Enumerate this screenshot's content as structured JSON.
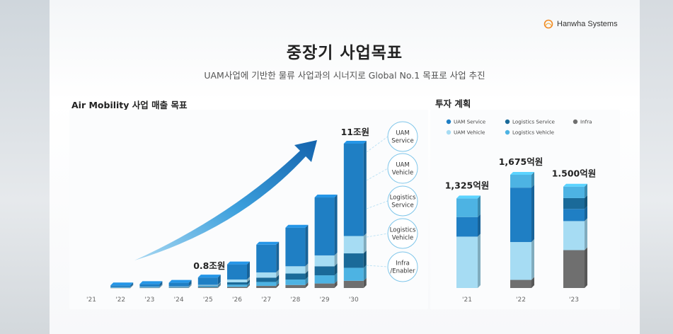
{
  "brand": {
    "logo_text": "Hanwha Systems"
  },
  "header": {
    "title": "중장기 사업목표",
    "subtitle": "UAM사업에 기반한 물류 사업과의 시너지로 Global No.1 목표로 사업 추진"
  },
  "left_section": {
    "title": "Air Mobility 사업 매출 목표"
  },
  "right_section": {
    "title": "투자 계획"
  },
  "colors": {
    "uam_service": "#1f7fc4",
    "uam_vehicle": "#a6dcf3",
    "logistics_service": "#1a6a99",
    "logistics_vehicle": "#4db3e3",
    "infra": "#6f6f6f",
    "arrow": "#1e88d0"
  },
  "chart_data": [
    {
      "type": "bar",
      "stacked": true,
      "categories": [
        "'21",
        "'22",
        "'23",
        "'24",
        "'25",
        "'26",
        "'27",
        "'28",
        "'29",
        "'30"
      ],
      "data_labels": {
        "'25": "0.8조원",
        "'30": "11조원"
      },
      "segment_labels": [
        {
          "key": "uam_service",
          "label": "UAM\nService"
        },
        {
          "key": "uam_vehicle",
          "label": "UAM\nVehicle"
        },
        {
          "key": "logistics_service",
          "label": "Logistics\nService"
        },
        {
          "key": "logistics_vehicle",
          "label": "Logistics\nVehicle"
        },
        {
          "key": "infra",
          "label": "Infra\n/Enabler"
        }
      ],
      "totals": [
        0,
        0.2,
        0.3,
        0.4,
        0.8,
        1.8,
        3.3,
        4.6,
        6.9,
        11.0
      ],
      "unit": "조원"
    },
    {
      "type": "bar",
      "stacked": true,
      "categories": [
        "'21",
        "'22",
        "'23"
      ],
      "legend": [
        {
          "key": "uam_service",
          "label": "UAM Service"
        },
        {
          "key": "logistics_service",
          "label": "Logistics Service"
        },
        {
          "key": "infra",
          "label": "Infra"
        },
        {
          "key": "uam_vehicle",
          "label": "UAM Vehicle"
        },
        {
          "key": "logistics_vehicle",
          "label": "Logistics Vehicle"
        }
      ],
      "legend_position": "top",
      "data_labels": [
        "1,325억원",
        "1,675억원",
        "1.500억원"
      ],
      "totals": [
        1325,
        1675,
        1500
      ],
      "series": [
        {
          "key": "infra",
          "values": [
            0,
            120,
            560
          ]
        },
        {
          "key": "uam_vehicle",
          "values": [
            760,
            560,
            430
          ]
        },
        {
          "key": "uam_service",
          "values": [
            290,
            805,
            180
          ]
        },
        {
          "key": "logistics_service",
          "values": [
            0,
            0,
            160
          ]
        },
        {
          "key": "logistics_vehicle",
          "values": [
            275,
            190,
            170
          ]
        }
      ],
      "unit": "억원"
    }
  ]
}
